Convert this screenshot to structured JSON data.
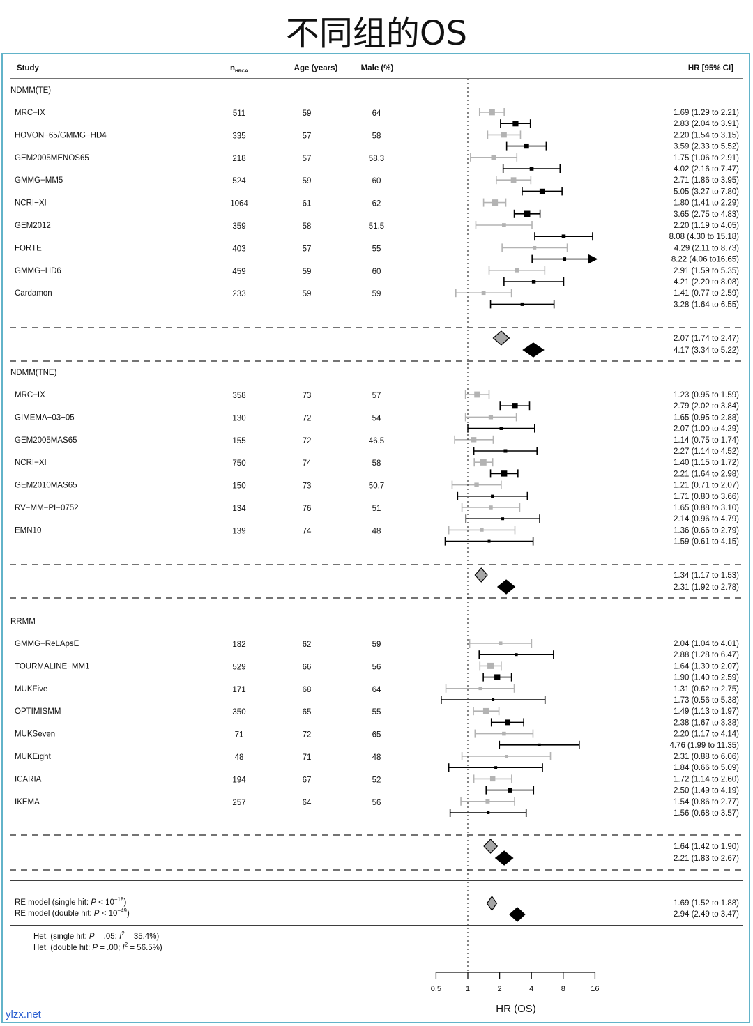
{
  "page": {
    "title": "不同组的OS",
    "watermark": "ylzx.net"
  },
  "colors": {
    "single": "#b3b3b3",
    "double": "#000000",
    "single_diamond": "#a6a6a6",
    "frame": "#62b3c9"
  },
  "header": {
    "study": "Study",
    "n": "n",
    "n_sub": "HRCA",
    "age": "Age (years)",
    "male": "Male (%)",
    "hr": "HR [95% CI]"
  },
  "chart_data": {
    "type": "forest",
    "xaxis": {
      "label": "HR (OS)",
      "scale": "log2",
      "range": [
        0.5,
        16
      ],
      "ticks": [
        0.5,
        1,
        2,
        4,
        8,
        16
      ],
      "tick_labels": [
        "0.5",
        "1",
        "2",
        "4",
        "8",
        "16"
      ],
      "reference": 1
    },
    "groups": [
      {
        "name": "NDMM(TE)",
        "studies": [
          {
            "name": "MRC−IX",
            "n": "511",
            "age": "59",
            "male": "64",
            "single": {
              "hr": 1.69,
              "lo": 1.29,
              "hi": 2.21,
              "label": "1.69 (1.29 to 2.21)"
            },
            "double": {
              "hr": 2.83,
              "lo": 2.04,
              "hi": 3.91,
              "label": "2.83 (2.04 to 3.91)"
            }
          },
          {
            "name": "HOVON−65/GMMG−HD4",
            "n": "335",
            "age": "57",
            "male": "58",
            "single": {
              "hr": 2.2,
              "lo": 1.54,
              "hi": 3.15,
              "label": "2.20 (1.54 to 3.15)"
            },
            "double": {
              "hr": 3.59,
              "lo": 2.33,
              "hi": 5.52,
              "label": "3.59 (2.33 to 5.52)"
            }
          },
          {
            "name": "GEM2005MENOS65",
            "n": "218",
            "age": "57",
            "male": "58.3",
            "single": {
              "hr": 1.75,
              "lo": 1.06,
              "hi": 2.91,
              "label": "1.75 (1.06 to 2.91)"
            },
            "double": {
              "hr": 4.02,
              "lo": 2.16,
              "hi": 7.47,
              "label": "4.02 (2.16 to 7.47)"
            }
          },
          {
            "name": "GMMG−MM5",
            "n": "524",
            "age": "59",
            "male": "60",
            "single": {
              "hr": 2.71,
              "lo": 1.86,
              "hi": 3.95,
              "label": "2.71 (1.86 to 3.95)"
            },
            "double": {
              "hr": 5.05,
              "lo": 3.27,
              "hi": 7.8,
              "label": "5.05 (3.27 to 7.80)"
            }
          },
          {
            "name": "NCRI−XI",
            "n": "1064",
            "age": "61",
            "male": "62",
            "single": {
              "hr": 1.8,
              "lo": 1.41,
              "hi": 2.29,
              "label": "1.80 (1.41 to 2.29)"
            },
            "double": {
              "hr": 3.65,
              "lo": 2.75,
              "hi": 4.83,
              "label": "3.65 (2.75 to 4.83)"
            }
          },
          {
            "name": "GEM2012",
            "n": "359",
            "age": "58",
            "male": "51.5",
            "single": {
              "hr": 2.2,
              "lo": 1.19,
              "hi": 4.05,
              "label": "2.20 (1.19 to 4.05)"
            },
            "double": {
              "hr": 8.08,
              "lo": 4.3,
              "hi": 15.18,
              "label": "8.08 (4.30 to 15.18)"
            }
          },
          {
            "name": "FORTE",
            "n": "403",
            "age": "57",
            "male": "55",
            "single": {
              "hr": 4.29,
              "lo": 2.11,
              "hi": 8.73,
              "label": "4.29 (2.11 to 8.73)"
            },
            "double": {
              "hr": 8.22,
              "lo": 4.06,
              "hi": 16.65,
              "label": "8.22 (4.06 to16.65)",
              "arrow": true
            }
          },
          {
            "name": "GMMG−HD6",
            "n": "459",
            "age": "59",
            "male": "60",
            "single": {
              "hr": 2.91,
              "lo": 1.59,
              "hi": 5.35,
              "label": "2.91 (1.59 to 5.35)"
            },
            "double": {
              "hr": 4.21,
              "lo": 2.2,
              "hi": 8.08,
              "label": "4.21 (2.20 to 8.08)"
            }
          },
          {
            "name": "Cardamon",
            "n": "233",
            "age": "59",
            "male": "59",
            "single": {
              "hr": 1.41,
              "lo": 0.77,
              "hi": 2.59,
              "label": "1.41 (0.77 to 2.59)"
            },
            "double": {
              "hr": 3.28,
              "lo": 1.64,
              "hi": 6.55,
              "label": "3.28 (1.64 to 6.55)"
            }
          }
        ],
        "pooled": {
          "single": {
            "hr": 2.07,
            "lo": 1.74,
            "hi": 2.47,
            "label": "2.07 (1.74 to 2.47)"
          },
          "double": {
            "hr": 4.17,
            "lo": 3.34,
            "hi": 5.22,
            "label": "4.17 (3.34 to 5.22)"
          }
        }
      },
      {
        "name": "NDMM(TNE)",
        "studies": [
          {
            "name": "MRC−IX",
            "n": "358",
            "age": "73",
            "male": "57",
            "single": {
              "hr": 1.23,
              "lo": 0.95,
              "hi": 1.59,
              "label": "1.23 (0.95 to 1.59)"
            },
            "double": {
              "hr": 2.79,
              "lo": 2.02,
              "hi": 3.84,
              "label": "2.79 (2.02 to 3.84)"
            }
          },
          {
            "name": "GIMEMA−03−05",
            "n": "130",
            "age": "72",
            "male": "54",
            "single": {
              "hr": 1.65,
              "lo": 0.95,
              "hi": 2.88,
              "label": "1.65 (0.95 to 2.88)"
            },
            "double": {
              "hr": 2.07,
              "lo": 1.0,
              "hi": 4.29,
              "label": "2.07 (1.00 to 4.29)"
            }
          },
          {
            "name": "GEM2005MAS65",
            "n": "155",
            "age": "72",
            "male": "46.5",
            "single": {
              "hr": 1.14,
              "lo": 0.75,
              "hi": 1.74,
              "label": "1.14 (0.75 to 1.74)"
            },
            "double": {
              "hr": 2.27,
              "lo": 1.14,
              "hi": 4.52,
              "label": "2.27 (1.14 to 4.52)"
            }
          },
          {
            "name": "NCRI−XI",
            "n": "750",
            "age": "74",
            "male": "58",
            "single": {
              "hr": 1.4,
              "lo": 1.15,
              "hi": 1.72,
              "label": "1.40 (1.15 to 1.72)"
            },
            "double": {
              "hr": 2.21,
              "lo": 1.64,
              "hi": 2.98,
              "label": "2.21 (1.64 to 2.98)"
            }
          },
          {
            "name": "GEM2010MAS65",
            "n": "150",
            "age": "73",
            "male": "50.7",
            "single": {
              "hr": 1.21,
              "lo": 0.71,
              "hi": 2.07,
              "label": "1.21 (0.71 to 2.07)"
            },
            "double": {
              "hr": 1.71,
              "lo": 0.8,
              "hi": 3.66,
              "label": "1.71 (0.80 to 3.66)"
            }
          },
          {
            "name": "RV−MM−PI−0752",
            "n": "134",
            "age": "76",
            "male": "51",
            "single": {
              "hr": 1.65,
              "lo": 0.88,
              "hi": 3.1,
              "label": "1.65 (0.88 to 3.10)"
            },
            "double": {
              "hr": 2.14,
              "lo": 0.96,
              "hi": 4.79,
              "label": "2.14 (0.96 to 4.79)"
            }
          },
          {
            "name": "EMN10",
            "n": "139",
            "age": "74",
            "male": "48",
            "single": {
              "hr": 1.36,
              "lo": 0.66,
              "hi": 2.79,
              "label": "1.36 (0.66 to 2.79)"
            },
            "double": {
              "hr": 1.59,
              "lo": 0.61,
              "hi": 4.15,
              "label": "1.59 (0.61 to 4.15)"
            }
          }
        ],
        "pooled": {
          "single": {
            "hr": 1.34,
            "lo": 1.17,
            "hi": 1.53,
            "label": "1.34 (1.17 to 1.53)"
          },
          "double": {
            "hr": 2.31,
            "lo": 1.92,
            "hi": 2.78,
            "label": "2.31 (1.92 to 2.78)"
          }
        }
      },
      {
        "name": "RRMM",
        "studies": [
          {
            "name": "GMMG−ReLApsE",
            "n": "182",
            "age": "62",
            "male": "59",
            "single": {
              "hr": 2.04,
              "lo": 1.04,
              "hi": 4.01,
              "label": "2.04 (1.04 to 4.01)"
            },
            "double": {
              "hr": 2.88,
              "lo": 1.28,
              "hi": 6.47,
              "label": "2.88 (1.28 to 6.47)"
            }
          },
          {
            "name": "TOURMALINE−MM1",
            "n": "529",
            "age": "66",
            "male": "56",
            "single": {
              "hr": 1.64,
              "lo": 1.3,
              "hi": 2.07,
              "label": "1.64 (1.30 to 2.07)"
            },
            "double": {
              "hr": 1.9,
              "lo": 1.4,
              "hi": 2.59,
              "label": "1.90 (1.40 to 2.59)"
            }
          },
          {
            "name": "MUKFive",
            "n": "171",
            "age": "68",
            "male": "64",
            "single": {
              "hr": 1.31,
              "lo": 0.62,
              "hi": 2.75,
              "label": "1.31 (0.62 to 2.75)"
            },
            "double": {
              "hr": 1.73,
              "lo": 0.56,
              "hi": 5.38,
              "label": "1.73 (0.56 to 5.38)"
            }
          },
          {
            "name": "OPTIMISMM",
            "n": "350",
            "age": "65",
            "male": "55",
            "single": {
              "hr": 1.49,
              "lo": 1.13,
              "hi": 1.97,
              "label": "1.49 (1.13 to 1.97)"
            },
            "double": {
              "hr": 2.38,
              "lo": 1.67,
              "hi": 3.38,
              "label": "2.38 (1.67 to 3.38)"
            }
          },
          {
            "name": "MUKSeven",
            "n": "71",
            "age": "72",
            "male": "65",
            "single": {
              "hr": 2.2,
              "lo": 1.17,
              "hi": 4.14,
              "label": "2.20 (1.17 to 4.14)"
            },
            "double": {
              "hr": 4.76,
              "lo": 1.99,
              "hi": 11.35,
              "label": "4.76 (1.99 to 11.35)"
            }
          },
          {
            "name": "MUKEight",
            "n": "48",
            "age": "71",
            "male": "48",
            "single": {
              "hr": 2.31,
              "lo": 0.88,
              "hi": 6.06,
              "label": "2.31 (0.88 to 6.06)"
            },
            "double": {
              "hr": 1.84,
              "lo": 0.66,
              "hi": 5.09,
              "label": "1.84 (0.66 to 5.09)"
            }
          },
          {
            "name": "ICARIA",
            "n": "194",
            "age": "67",
            "male": "52",
            "single": {
              "hr": 1.72,
              "lo": 1.14,
              "hi": 2.6,
              "label": "1.72 (1.14 to 2.60)"
            },
            "double": {
              "hr": 2.5,
              "lo": 1.49,
              "hi": 4.19,
              "label": "2.50 (1.49 to 4.19)"
            }
          },
          {
            "name": "IKEMA",
            "n": "257",
            "age": "64",
            "male": "56",
            "single": {
              "hr": 1.54,
              "lo": 0.86,
              "hi": 2.77,
              "label": "1.54 (0.86 to 2.77)"
            },
            "double": {
              "hr": 1.56,
              "lo": 0.68,
              "hi": 3.57,
              "label": "1.56 (0.68 to 3.57)"
            }
          }
        ],
        "pooled": {
          "single": {
            "hr": 1.64,
            "lo": 1.42,
            "hi": 1.9,
            "label": "1.64 (1.42 to 1.90)"
          },
          "double": {
            "hr": 2.21,
            "lo": 1.83,
            "hi": 2.67,
            "label": "2.21 (1.83 to 2.67)"
          }
        }
      }
    ],
    "overall": {
      "single": {
        "text_prefix": "RE model (single hit: ",
        "p_italic": "P",
        "text_mid": " < 10",
        "exp": "−18",
        "text_suffix": ")",
        "hr": 1.69,
        "lo": 1.52,
        "hi": 1.88,
        "label": "1.69 (1.52 to 1.88)"
      },
      "double": {
        "text_prefix": "RE model (double hit: ",
        "p_italic": "P",
        "text_mid": " < 10",
        "exp": "−49",
        "text_suffix": ")",
        "hr": 2.94,
        "lo": 2.49,
        "hi": 3.47,
        "label": "2.94 (2.49 to 3.47)"
      }
    },
    "heterogeneity": [
      {
        "prefix": "Het. (single hit: ",
        "p": "P",
        "p_val": " = .05; ",
        "i": "I",
        "sup": "2",
        "i_val": " = 35.4%)"
      },
      {
        "prefix": "Het. (double hit: ",
        "p": "P",
        "p_val": " = .00; ",
        "i": "I",
        "sup": "2",
        "i_val": " = 56.5%)"
      }
    ]
  }
}
